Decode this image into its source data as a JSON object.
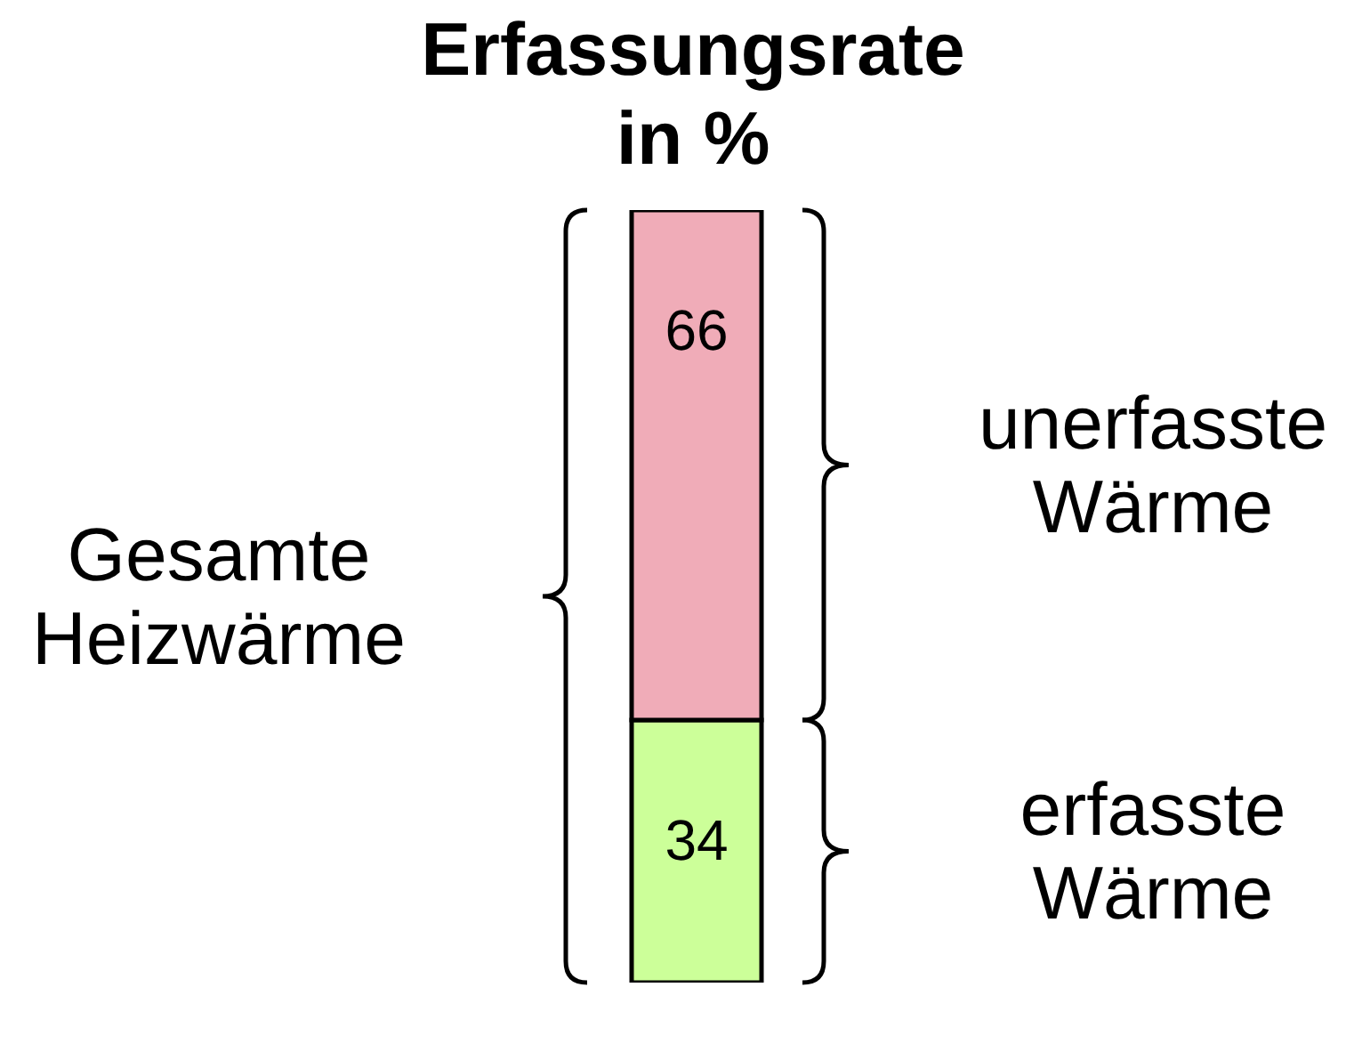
{
  "chart_data": {
    "type": "bar",
    "title": "Erfassungsrate in %",
    "stacked": true,
    "categories": [
      null
    ],
    "series": [
      {
        "name": "erfasste Wärme",
        "color": "#ccff99",
        "values": [
          34
        ]
      },
      {
        "name": "unerfasste Wärme",
        "color": "#f0acb8",
        "values": [
          66
        ]
      }
    ],
    "annotations": [
      "Gesamte Heizwärme"
    ],
    "data_labels": true
  }
}
